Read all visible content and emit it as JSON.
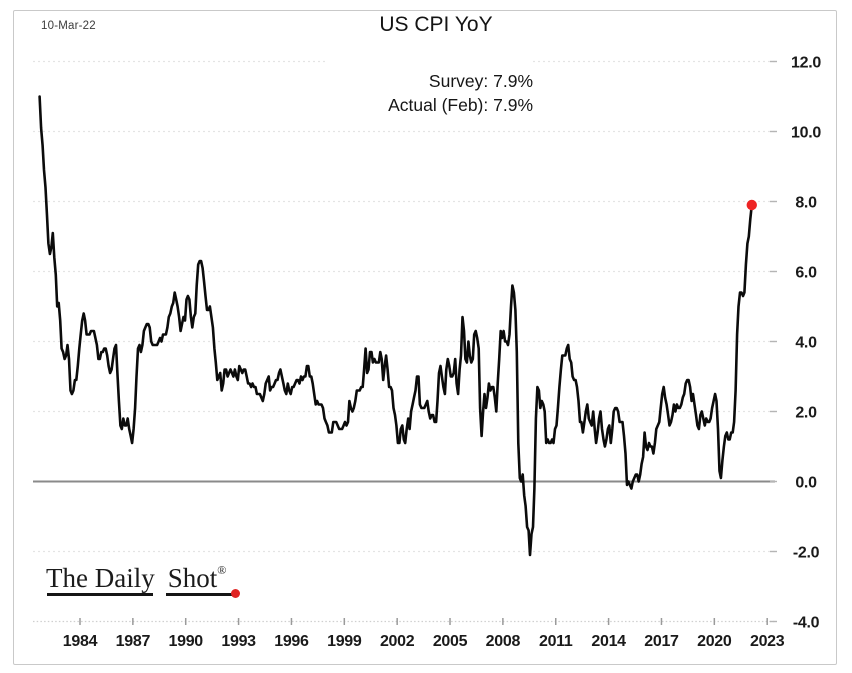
{
  "page": {
    "date_label": "10-Mar-22",
    "title": "US CPI YoY",
    "survey_line": "Survey:  7.9%",
    "actual_line": "Actual (Feb):  7.9%",
    "logo": {
      "part1": "The Daily",
      "part2": "Shot",
      "registered_mark": "®"
    }
  },
  "chart_data": {
    "type": "line",
    "title": "US CPI YoY",
    "unit": "percent (year-over-year)",
    "annotations": [
      "Survey:  7.9%",
      "Actual (Feb):  7.9%",
      "10-Mar-22"
    ],
    "legend": false,
    "grid": true,
    "line_color": "#0b0b0b",
    "zero_line_color": "#8a8a8a",
    "grid_color": "#e4e4e4",
    "end_marker": {
      "period": "Feb 2022",
      "value": 7.9,
      "color": "#ee2424"
    },
    "x_ticks": [
      1984,
      1987,
      1990,
      1993,
      1996,
      1999,
      2002,
      2005,
      2008,
      2011,
      2014,
      2017,
      2020,
      2023
    ],
    "y_ticks": [
      12,
      10,
      8,
      6,
      4,
      2,
      0,
      -2,
      -4
    ],
    "y_tick_labels": [
      "12.0",
      "10.0",
      "8.0",
      "6.0",
      "4.0",
      "2.0",
      "0.0",
      "-2.0",
      "-4.0"
    ],
    "ylim": [
      -4,
      12
    ],
    "start_year": 1981,
    "start_month": 9,
    "frequency": "monthly",
    "values_by_year": {
      "1981": [
        11.0,
        10.1,
        9.6,
        8.9
      ],
      "1982": [
        8.4,
        7.6,
        6.8,
        6.5,
        6.7,
        7.1,
        6.4,
        5.9,
        5.0,
        5.1,
        4.6,
        3.8
      ],
      "1983": [
        3.7,
        3.5,
        3.6,
        3.9,
        3.5,
        2.6,
        2.5,
        2.6,
        2.9,
        2.9,
        3.3,
        3.8
      ],
      "1984": [
        4.2,
        4.6,
        4.8,
        4.6,
        4.2,
        4.2,
        4.2,
        4.3,
        4.3,
        4.3,
        4.1,
        3.9
      ],
      "1985": [
        3.5,
        3.5,
        3.7,
        3.7,
        3.8,
        3.8,
        3.6,
        3.3,
        3.1,
        3.2,
        3.5,
        3.8
      ],
      "1986": [
        3.9,
        3.1,
        2.3,
        1.6,
        1.5,
        1.8,
        1.6,
        1.6,
        1.8,
        1.5,
        1.3,
        1.1
      ],
      "1987": [
        1.5,
        2.1,
        3.0,
        3.8,
        3.9,
        3.7,
        3.9,
        4.3,
        4.4,
        4.5,
        4.5,
        4.4
      ],
      "1988": [
        4.0,
        3.9,
        3.9,
        3.9,
        3.9,
        4.0,
        4.1,
        4.0,
        4.2,
        4.2,
        4.2,
        4.4
      ],
      "1989": [
        4.7,
        4.8,
        5.0,
        5.1,
        5.4,
        5.2,
        5.0,
        4.7,
        4.3,
        4.5,
        4.7,
        4.6
      ],
      "1990": [
        5.2,
        5.3,
        5.2,
        4.7,
        4.4,
        4.7,
        4.8,
        5.6,
        6.2,
        6.3,
        6.3,
        6.1
      ],
      "1991": [
        5.7,
        5.3,
        4.9,
        4.9,
        5.0,
        4.7,
        4.4,
        3.8,
        3.4,
        2.9,
        3.0,
        3.1
      ],
      "1992": [
        2.6,
        2.8,
        3.2,
        3.2,
        3.0,
        3.1,
        3.2,
        3.1,
        3.0,
        3.2,
        3.0,
        2.9
      ],
      "1993": [
        3.3,
        3.2,
        3.1,
        3.2,
        3.2,
        3.0,
        2.8,
        2.8,
        2.7,
        2.8,
        2.7,
        2.7
      ],
      "1994": [
        2.5,
        2.5,
        2.5,
        2.4,
        2.3,
        2.5,
        2.8,
        2.9,
        3.0,
        2.6,
        2.7,
        2.7
      ],
      "1995": [
        2.8,
        2.9,
        2.9,
        3.1,
        3.2,
        3.0,
        2.8,
        2.6,
        2.5,
        2.8,
        2.6,
        2.5
      ],
      "1996": [
        2.7,
        2.7,
        2.8,
        2.9,
        2.9,
        2.8,
        3.0,
        2.9,
        3.0,
        3.0,
        3.3,
        3.3
      ],
      "1997": [
        3.0,
        3.0,
        2.8,
        2.5,
        2.2,
        2.3,
        2.2,
        2.2,
        2.2,
        2.1,
        1.8,
        1.7
      ],
      "1998": [
        1.6,
        1.4,
        1.4,
        1.4,
        1.7,
        1.7,
        1.7,
        1.6,
        1.5,
        1.5,
        1.5,
        1.6
      ],
      "1999": [
        1.7,
        1.6,
        1.7,
        2.3,
        2.1,
        2.0,
        2.1,
        2.3,
        2.6,
        2.6,
        2.6,
        2.7
      ],
      "2000": [
        2.7,
        3.2,
        3.8,
        3.1,
        3.2,
        3.7,
        3.7,
        3.4,
        3.5,
        3.4,
        3.4,
        3.4
      ],
      "2001": [
        3.7,
        3.5,
        2.9,
        3.3,
        3.6,
        3.2,
        2.7,
        2.7,
        2.6,
        2.1,
        1.9,
        1.6
      ],
      "2002": [
        1.1,
        1.1,
        1.5,
        1.6,
        1.2,
        1.1,
        1.5,
        1.8,
        1.5,
        2.0,
        2.2,
        2.4
      ],
      "2003": [
        2.6,
        3.0,
        3.0,
        2.2,
        2.1,
        2.1,
        2.1,
        2.2,
        2.3,
        2.0,
        1.8,
        1.9
      ],
      "2004": [
        1.9,
        1.7,
        1.7,
        2.3,
        3.1,
        3.3,
        3.0,
        2.7,
        2.5,
        3.2,
        3.5,
        3.3
      ],
      "2005": [
        3.0,
        3.0,
        3.1,
        3.5,
        2.8,
        2.5,
        3.2,
        3.6,
        4.7,
        4.3,
        3.5,
        3.4
      ],
      "2006": [
        4.0,
        3.6,
        3.4,
        3.5,
        4.2,
        4.3,
        4.1,
        3.8,
        2.1,
        1.3,
        2.0,
        2.5
      ],
      "2007": [
        2.1,
        2.4,
        2.8,
        2.6,
        2.7,
        2.7,
        2.4,
        2.0,
        2.8,
        3.5,
        4.3,
        4.1
      ],
      "2008": [
        4.3,
        4.0,
        4.0,
        3.9,
        4.2,
        5.0,
        5.6,
        5.4,
        4.9,
        3.7,
        1.1,
        0.1
      ],
      "2009": [
        0.0,
        0.2,
        -0.4,
        -0.7,
        -1.3,
        -1.4,
        -2.1,
        -1.5,
        -1.3,
        -0.2,
        1.8,
        2.7
      ],
      "2010": [
        2.6,
        2.1,
        2.3,
        2.2,
        2.0,
        1.1,
        1.2,
        1.1,
        1.1,
        1.2,
        1.1,
        1.5
      ],
      "2011": [
        1.6,
        2.1,
        2.7,
        3.2,
        3.6,
        3.6,
        3.6,
        3.8,
        3.9,
        3.5,
        3.4,
        3.0
      ],
      "2012": [
        2.9,
        2.9,
        2.7,
        2.3,
        1.7,
        1.7,
        1.4,
        1.7,
        2.0,
        2.2,
        1.8,
        1.7
      ],
      "2013": [
        1.6,
        2.0,
        1.5,
        1.1,
        1.4,
        1.8,
        2.0,
        1.5,
        1.2,
        1.0,
        1.2,
        1.5
      ],
      "2014": [
        1.6,
        1.1,
        1.5,
        2.0,
        2.1,
        2.1,
        2.0,
        1.7,
        1.7,
        1.7,
        1.3,
        0.8
      ],
      "2015": [
        -0.1,
        0.0,
        -0.1,
        -0.2,
        0.0,
        0.1,
        0.2,
        0.2,
        0.0,
        0.2,
        0.5,
        0.7
      ],
      "2016": [
        1.4,
        1.0,
        0.9,
        1.1,
        1.0,
        1.0,
        0.8,
        1.1,
        1.5,
        1.6,
        1.7,
        2.1
      ],
      "2017": [
        2.5,
        2.7,
        2.4,
        2.2,
        1.9,
        1.6,
        1.7,
        1.9,
        2.2,
        2.0,
        2.2,
        2.1
      ],
      "2018": [
        2.1,
        2.2,
        2.4,
        2.5,
        2.8,
        2.9,
        2.9,
        2.7,
        2.3,
        2.5,
        2.2,
        1.9
      ],
      "2019": [
        1.6,
        1.5,
        1.9,
        2.0,
        1.8,
        1.6,
        1.8,
        1.7,
        1.7,
        1.8,
        2.1,
        2.3
      ],
      "2020": [
        2.5,
        2.3,
        1.5,
        0.3,
        0.1,
        0.6,
        1.0,
        1.3,
        1.4,
        1.2,
        1.2,
        1.4
      ],
      "2021": [
        1.4,
        1.7,
        2.6,
        4.2,
        5.0,
        5.4,
        5.4,
        5.3,
        5.4,
        6.2,
        6.8,
        7.0
      ],
      "2022": [
        7.5,
        7.9
      ]
    }
  }
}
